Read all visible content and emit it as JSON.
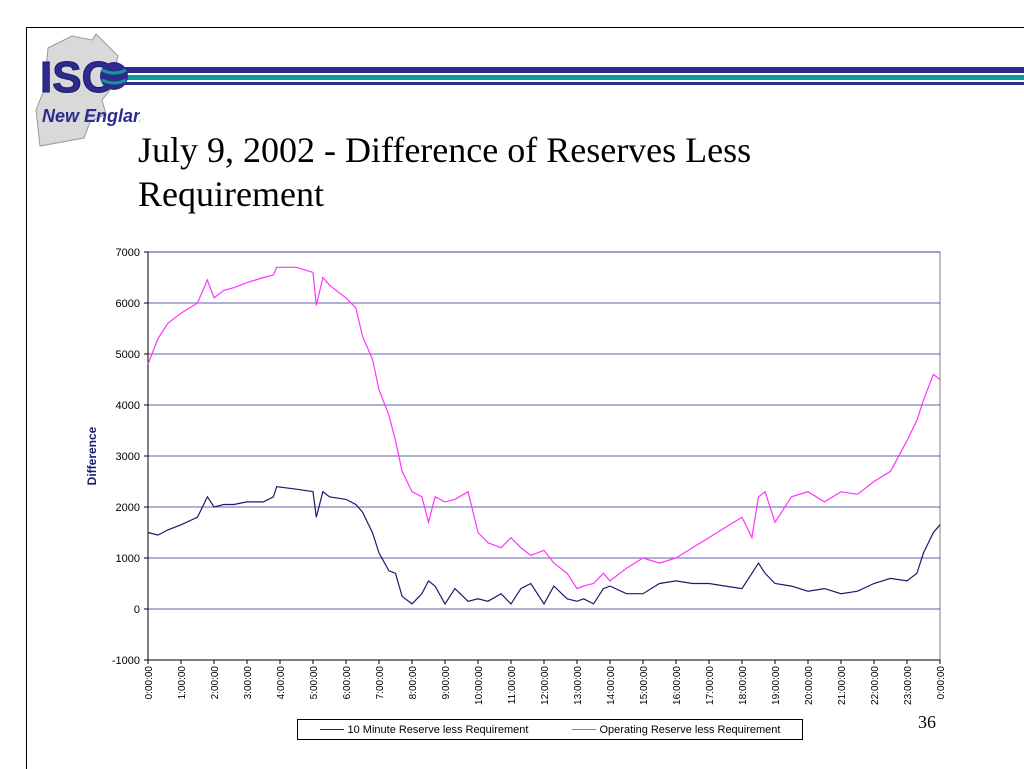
{
  "slide": {
    "title": "July 9, 2002 - Difference of Reserves Less Requirement",
    "page_number": "36",
    "logo_text": "ISO New England"
  },
  "colors": {
    "band_dark": "#2e2b8f",
    "band_teal": "#0f9a93",
    "series_10min": "#1a1a6e",
    "series_operating": "#ff33ff",
    "gridline": "#2e2b8f"
  },
  "chart_data": {
    "type": "line",
    "title": "",
    "xlabel": "",
    "ylabel": "Difference",
    "ylim": [
      -1000,
      7000
    ],
    "yticks": [
      -1000,
      0,
      1000,
      2000,
      3000,
      4000,
      5000,
      6000,
      7000
    ],
    "xticks": [
      "0:00:00",
      "1:00:00",
      "2:00:00",
      "3:00:00",
      "4:00:00",
      "5:00:00",
      "6:00:00",
      "7:00:00",
      "8:00:00",
      "9:00:00",
      "10:00:00",
      "11:00:00",
      "12:00:00",
      "13:00:00",
      "14:00:00",
      "15:00:00",
      "16:00:00",
      "17:00:00",
      "18:00:00",
      "19:00:00",
      "20:00:00",
      "21:00:00",
      "22:00:00",
      "23:00:00",
      "0:00:00"
    ],
    "grid": true,
    "legend_position": "bottom",
    "series": [
      {
        "name": "10 Minute Reserve less Requirement",
        "x": [
          0,
          0.3,
          0.6,
          1.0,
          1.5,
          1.8,
          2.0,
          2.3,
          2.6,
          3.0,
          3.5,
          3.8,
          3.9,
          4.5,
          5.0,
          5.1,
          5.3,
          5.5,
          6.0,
          6.3,
          6.5,
          6.8,
          7.0,
          7.3,
          7.5,
          7.7,
          8.0,
          8.3,
          8.5,
          8.7,
          9.0,
          9.3,
          9.7,
          10.0,
          10.3,
          10.7,
          11.0,
          11.3,
          11.6,
          12.0,
          12.3,
          12.7,
          13.0,
          13.2,
          13.5,
          13.8,
          14.0,
          14.5,
          15.0,
          15.5,
          16.0,
          16.5,
          17.0,
          17.5,
          18.0,
          18.3,
          18.5,
          18.7,
          19.0,
          19.5,
          20.0,
          20.5,
          21.0,
          21.5,
          22.0,
          22.5,
          23.0,
          23.3,
          23.5,
          23.8,
          24.0
        ],
        "values": [
          1500,
          1450,
          1550,
          1650,
          1800,
          2200,
          2000,
          2050,
          2050,
          2100,
          2100,
          2200,
          2400,
          2350,
          2300,
          1800,
          2300,
          2200,
          2150,
          2050,
          1900,
          1500,
          1100,
          750,
          700,
          250,
          100,
          300,
          550,
          450,
          100,
          400,
          150,
          200,
          150,
          300,
          100,
          400,
          500,
          100,
          450,
          200,
          150,
          200,
          100,
          400,
          450,
          300,
          300,
          500,
          550,
          500,
          500,
          450,
          400,
          700,
          900,
          700,
          500,
          450,
          350,
          400,
          300,
          350,
          500,
          600,
          550,
          700,
          1100,
          1500,
          1650
        ],
        "color": "#1a1a6e"
      },
      {
        "name": "Operating Reserve less Requirement",
        "x": [
          0,
          0.3,
          0.6,
          1.0,
          1.5,
          1.8,
          2.0,
          2.3,
          2.6,
          3.0,
          3.5,
          3.8,
          3.9,
          4.5,
          5.0,
          5.1,
          5.3,
          5.5,
          6.0,
          6.3,
          6.5,
          6.8,
          7.0,
          7.3,
          7.5,
          7.7,
          8.0,
          8.3,
          8.5,
          8.7,
          9.0,
          9.3,
          9.7,
          10.0,
          10.3,
          10.7,
          11.0,
          11.3,
          11.6,
          12.0,
          12.3,
          12.7,
          13.0,
          13.2,
          13.5,
          13.8,
          14.0,
          14.5,
          15.0,
          15.5,
          16.0,
          16.5,
          17.0,
          17.5,
          18.0,
          18.3,
          18.5,
          18.7,
          19.0,
          19.5,
          20.0,
          20.5,
          21.0,
          21.5,
          22.0,
          22.5,
          23.0,
          23.3,
          23.5,
          23.8,
          24.0
        ],
        "values": [
          4800,
          5300,
          5600,
          5800,
          6000,
          6450,
          6100,
          6250,
          6300,
          6400,
          6500,
          6550,
          6700,
          6700,
          6600,
          5950,
          6500,
          6350,
          6100,
          5900,
          5350,
          4900,
          4300,
          3800,
          3300,
          2700,
          2300,
          2200,
          1700,
          2200,
          2100,
          2150,
          2300,
          1500,
          1300,
          1200,
          1400,
          1200,
          1050,
          1150,
          900,
          700,
          400,
          450,
          500,
          700,
          550,
          800,
          1000,
          900,
          1000,
          1200,
          1400,
          1600,
          1800,
          1400,
          2200,
          2300,
          1700,
          2200,
          2300,
          2100,
          2300,
          2250,
          2500,
          2700,
          3300,
          3700,
          4100,
          4600,
          4500
        ],
        "color": "#ff33ff"
      }
    ]
  }
}
